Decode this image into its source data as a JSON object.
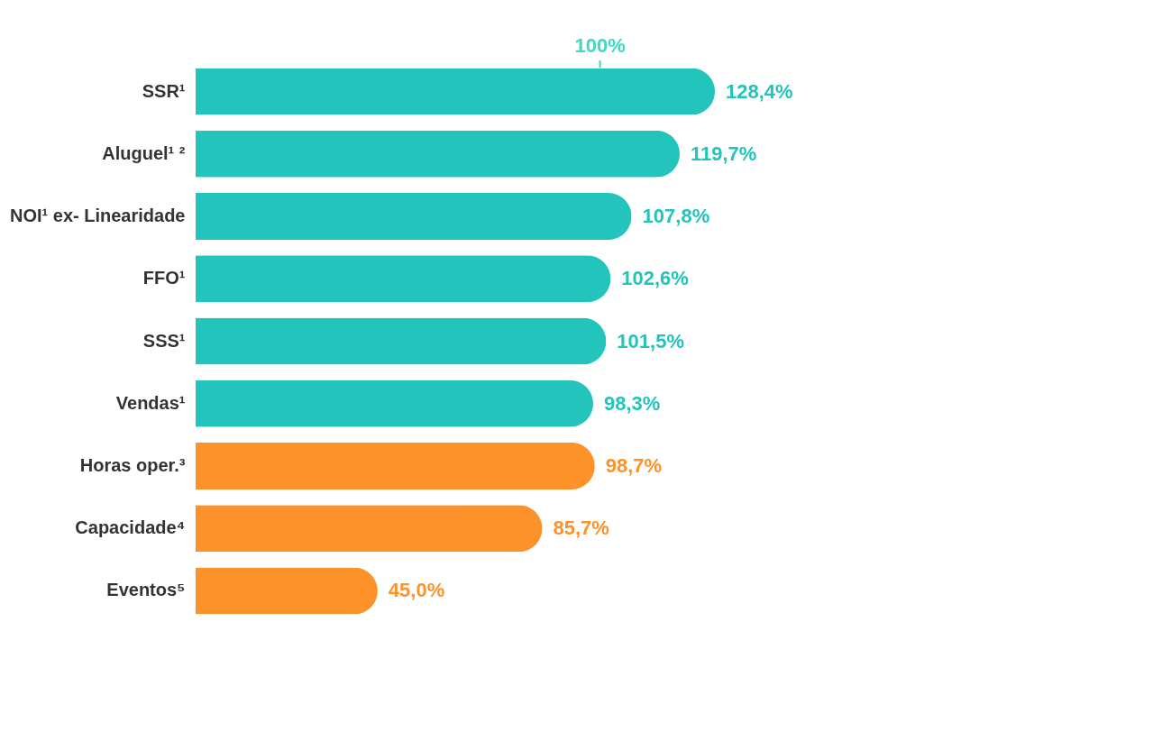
{
  "chart_data": {
    "type": "bar",
    "orientation": "horizontal",
    "categories": [
      "SSR¹",
      "Aluguel¹ ²",
      "NOI¹ ex- Linearidade",
      "FFO¹",
      "SSS¹",
      "Vendas¹",
      "Horas oper.³",
      "Capacidade⁴",
      "Eventos⁵"
    ],
    "values": [
      128.4,
      119.7,
      107.8,
      102.6,
      101.5,
      98.3,
      98.7,
      85.7,
      45.0
    ],
    "colors": [
      "#22c4bc",
      "#22c4bc",
      "#22c4bc",
      "#22c4bc",
      "#22c4bc",
      "#22c4bc",
      "#fd922b",
      "#fd922b",
      "#fd922b"
    ],
    "value_labels": [
      "128,4%",
      "119,7%",
      "107,8%",
      "102,6%",
      "101,5%",
      "98,3%",
      "98,7%",
      "85,7%",
      "45,0%"
    ],
    "tick_labels": "y",
    "ref_lines": [
      {
        "axis": "x",
        "value": 100,
        "label": "100%",
        "color": "#3fd9c0"
      }
    ]
  }
}
